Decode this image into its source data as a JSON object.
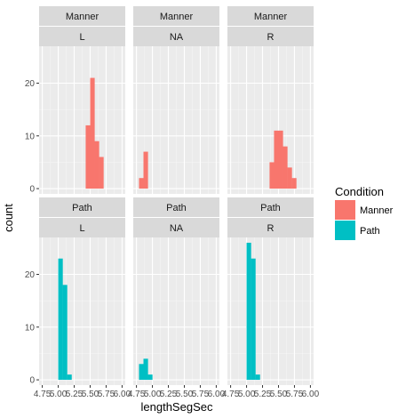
{
  "chart_data": {
    "type": "bar",
    "subtype": "faceted-histogram",
    "xlabel": "lengthSegSec",
    "ylabel": "count",
    "xlim": [
      4.7,
      6.05
    ],
    "x_ticks": [
      4.75,
      5.0,
      5.25,
      5.5,
      5.75,
      6.0
    ],
    "x_tick_labels": [
      "4.75",
      "5.00",
      "5.25",
      "5.50",
      "5.75",
      "6.00"
    ],
    "bin_width": 0.0714,
    "grid": true,
    "legend": {
      "title": "Condition",
      "position": "right",
      "entries": [
        {
          "label": "Manner",
          "color": "#F8766D"
        },
        {
          "label": "Path",
          "color": "#00BFC4"
        }
      ]
    },
    "rows": [
      {
        "strip": "Manner",
        "condition": "Manner",
        "y_ticks": [
          0,
          10,
          20
        ],
        "y_tick_labels": [
          "0",
          "10",
          "20"
        ],
        "ylim": [
          -1,
          27
        ],
        "panels": [
          {
            "strip": "L",
            "bins": [
              {
                "x": 5.43,
                "count": 12
              },
              {
                "x": 5.5,
                "count": 21
              },
              {
                "x": 5.57,
                "count": 9
              },
              {
                "x": 5.64,
                "count": 6
              }
            ]
          },
          {
            "strip": "NA",
            "bins": [
              {
                "x": 4.79,
                "count": 2
              },
              {
                "x": 4.86,
                "count": 7
              }
            ]
          },
          {
            "strip": "R",
            "bins": [
              {
                "x": 5.36,
                "count": 5
              },
              {
                "x": 5.43,
                "count": 11
              },
              {
                "x": 5.5,
                "count": 11
              },
              {
                "x": 5.57,
                "count": 8
              },
              {
                "x": 5.64,
                "count": 4
              },
              {
                "x": 5.71,
                "count": 2
              }
            ]
          }
        ]
      },
      {
        "strip": "Path",
        "condition": "Path",
        "y_ticks": [
          0,
          10,
          20
        ],
        "y_tick_labels": [
          "0",
          "10",
          "20"
        ],
        "ylim": [
          -1,
          27
        ],
        "panels": [
          {
            "strip": "L",
            "bins": [
              {
                "x": 5.0,
                "count": 23
              },
              {
                "x": 5.07,
                "count": 18
              },
              {
                "x": 5.14,
                "count": 1
              }
            ]
          },
          {
            "strip": "NA",
            "bins": [
              {
                "x": 4.79,
                "count": 3
              },
              {
                "x": 4.86,
                "count": 4
              },
              {
                "x": 4.93,
                "count": 1
              }
            ]
          },
          {
            "strip": "R",
            "bins": [
              {
                "x": 5.0,
                "count": 26
              },
              {
                "x": 5.07,
                "count": 23
              },
              {
                "x": 5.14,
                "count": 1
              }
            ]
          }
        ]
      }
    ]
  }
}
